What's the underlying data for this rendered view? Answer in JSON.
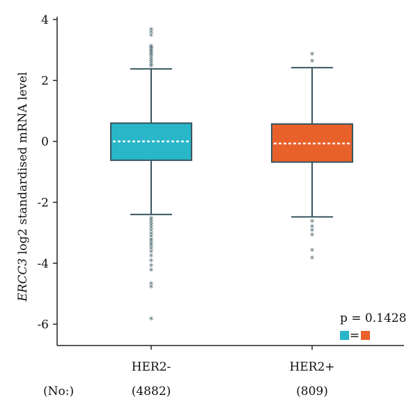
{
  "chart_data": {
    "type": "box",
    "ylabel_gene": "ERCC3",
    "ylabel_rest": " log2 standardised mRNA level",
    "ylim": [
      -6.7,
      4.0
    ],
    "yticks": [
      4,
      2,
      0,
      -2,
      -4,
      -6
    ],
    "ytick_labels": [
      "4",
      "2",
      "0",
      "-2",
      "-4",
      "-6"
    ],
    "categories": [
      "HER2-",
      "HER2+"
    ],
    "counts_label": "(No:)",
    "counts": [
      "(4882)",
      "(809)"
    ],
    "boxes": [
      {
        "name": "HER2-",
        "color": "#29b6c8",
        "whisker_low": -2.4,
        "q1": -0.62,
        "median": 0.0,
        "q3": 0.6,
        "whisker_high": 2.38,
        "outliers": [
          3.65,
          3.55,
          3.45,
          3.1,
          3.05,
          3.0,
          2.95,
          2.9,
          2.85,
          2.8,
          2.72,
          2.65,
          2.58,
          2.5,
          2.45,
          -2.55,
          -2.62,
          -2.7,
          -2.78,
          -2.86,
          -2.95,
          -3.05,
          -3.15,
          -3.25,
          -3.3,
          -3.38,
          -3.45,
          -3.55,
          -3.65,
          -3.78,
          -3.95,
          -4.1,
          -4.25,
          -4.7,
          -4.8,
          -5.85
        ]
      },
      {
        "name": "HER2+",
        "color": "#e8612a",
        "whisker_low": -2.48,
        "q1": -0.68,
        "median": -0.07,
        "q3": 0.57,
        "whisker_high": 2.42,
        "outliers": [
          2.83,
          2.6,
          -2.65,
          -2.82,
          -2.95,
          -3.1,
          -3.6,
          -3.85
        ]
      }
    ],
    "p_value_text": "p = 0.1428",
    "equality_symbol": "=",
    "grid": false,
    "legend": "bottom-right"
  }
}
